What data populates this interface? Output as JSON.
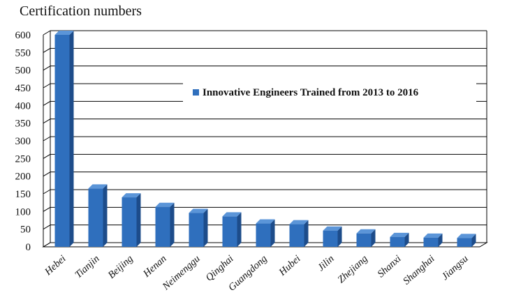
{
  "chart_data": {
    "type": "bar",
    "title": "",
    "ylabel": "Certification numbers",
    "xlabel": "",
    "ylim": [
      0,
      600
    ],
    "yticks": [
      0,
      50,
      100,
      150,
      200,
      250,
      300,
      350,
      400,
      450,
      500,
      550,
      600
    ],
    "categories": [
      "Hebei",
      "Tianjin",
      "Beijing",
      "Henan",
      "Neimenggu",
      "Qinghai",
      "Guangdong",
      "Hubei",
      "Jilin",
      "Zhejiang",
      "Shanxi",
      "Shanghai",
      "Jiangsu"
    ],
    "series": [
      {
        "name": "Innovative Engineers Trained from 2013 to 2016",
        "values": [
          600,
          165,
          140,
          113,
          96,
          86,
          66,
          64,
          46,
          38,
          28,
          26,
          25
        ]
      }
    ],
    "grid": true,
    "legend_position": "upper-right",
    "colors": {
      "bar_front": "#2f6fbd",
      "bar_side": "#1d4c8a",
      "bar_top": "#5b95d8",
      "grid": "#000000",
      "legend_marker": "#2f6fbd"
    }
  }
}
